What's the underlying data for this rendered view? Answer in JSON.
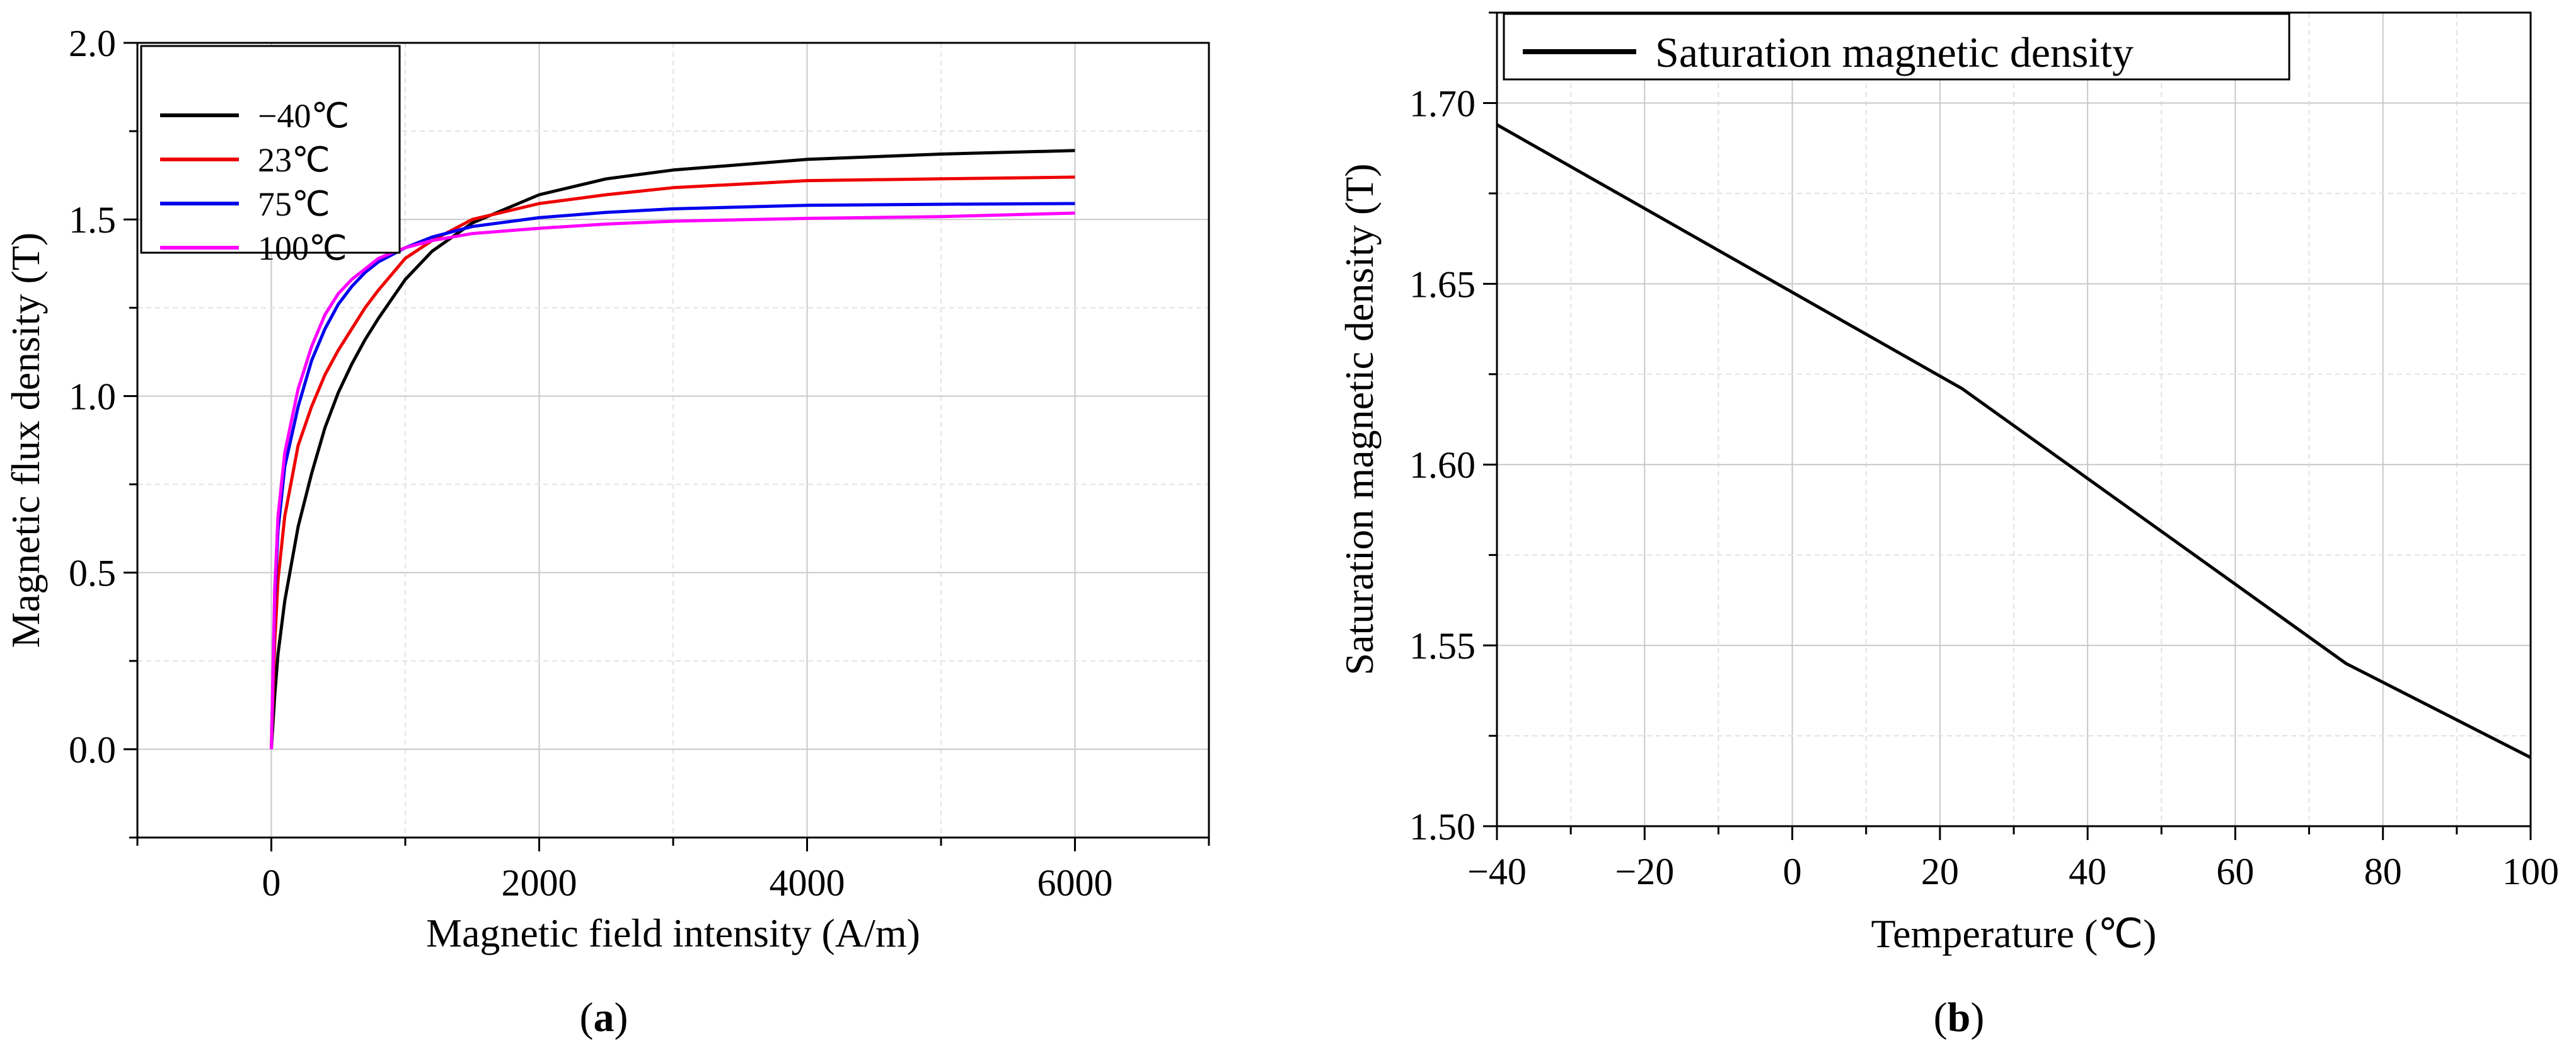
{
  "chart_data": [
    {
      "id": "a",
      "type": "line",
      "panel_label": "a",
      "xlabel": "Magnetic field intensity (A/m)",
      "ylabel": "Magnetic flux density (T)",
      "xlim": [
        -1000,
        7000
      ],
      "ylim": [
        -0.25,
        2.0
      ],
      "xticks": [
        0,
        2000,
        4000,
        6000
      ],
      "yticks": [
        0.0,
        0.5,
        1.0,
        1.5,
        2.0
      ],
      "ytick_labels": [
        "0.0",
        "0.5",
        "1.0",
        "1.5",
        "2.0"
      ],
      "grid": true,
      "legend_position": "top-left",
      "series": [
        {
          "name": "−40℃",
          "color": "#000000",
          "x": [
            0,
            25,
            50,
            100,
            200,
            300,
            400,
            500,
            600,
            700,
            800,
            1000,
            1200,
            1500,
            2000,
            2500,
            3000,
            4000,
            5000,
            6000
          ],
          "y": [
            0.0,
            0.15,
            0.27,
            0.42,
            0.63,
            0.78,
            0.91,
            1.01,
            1.09,
            1.16,
            1.22,
            1.33,
            1.41,
            1.49,
            1.57,
            1.615,
            1.64,
            1.67,
            1.685,
            1.695
          ]
        },
        {
          "name": "23℃",
          "color": "#ee0000",
          "x": [
            0,
            25,
            50,
            100,
            200,
            300,
            400,
            500,
            600,
            700,
            800,
            1000,
            1200,
            1500,
            2000,
            2500,
            3000,
            4000,
            5000,
            6000
          ],
          "y": [
            0.0,
            0.3,
            0.48,
            0.66,
            0.86,
            0.97,
            1.06,
            1.13,
            1.19,
            1.25,
            1.3,
            1.39,
            1.44,
            1.5,
            1.545,
            1.57,
            1.59,
            1.61,
            1.615,
            1.62
          ]
        },
        {
          "name": "75℃",
          "color": "#0000ee",
          "x": [
            0,
            25,
            50,
            100,
            200,
            300,
            400,
            500,
            600,
            700,
            800,
            1000,
            1200,
            1500,
            2000,
            2500,
            3000,
            4000,
            5000,
            6000
          ],
          "y": [
            0.0,
            0.42,
            0.62,
            0.8,
            0.97,
            1.1,
            1.19,
            1.26,
            1.31,
            1.35,
            1.38,
            1.42,
            1.45,
            1.48,
            1.505,
            1.52,
            1.53,
            1.54,
            1.543,
            1.545
          ]
        },
        {
          "name": "100℃",
          "color": "#ff00ff",
          "x": [
            0,
            25,
            50,
            100,
            200,
            300,
            400,
            500,
            600,
            700,
            800,
            1000,
            1200,
            1500,
            2000,
            2500,
            3000,
            4000,
            5000,
            6000
          ],
          "y": [
            0.0,
            0.45,
            0.66,
            0.84,
            1.02,
            1.14,
            1.23,
            1.29,
            1.33,
            1.36,
            1.39,
            1.42,
            1.44,
            1.46,
            1.475,
            1.487,
            1.495,
            1.503,
            1.508,
            1.518
          ]
        }
      ]
    },
    {
      "id": "b",
      "type": "line",
      "panel_label": "b",
      "xlabel": "Temperature (℃)",
      "ylabel": "Saturation magnetic density (T)",
      "xlim": [
        -40,
        100
      ],
      "ylim": [
        1.5,
        1.725
      ],
      "xticks": [
        -40,
        -20,
        0,
        20,
        40,
        60,
        80,
        100
      ],
      "xtick_labels": [
        "−40",
        "−20",
        "0",
        "20",
        "40",
        "60",
        "80",
        "100"
      ],
      "yticks": [
        1.5,
        1.55,
        1.6,
        1.65,
        1.7
      ],
      "ytick_labels": [
        "1.50",
        "1.55",
        "1.60",
        "1.65",
        "1.70"
      ],
      "grid": true,
      "legend_position": "top-left",
      "series": [
        {
          "name": "Saturation magnetic density",
          "color": "#000000",
          "x": [
            -40,
            23,
            75,
            100
          ],
          "y": [
            1.694,
            1.621,
            1.545,
            1.519
          ]
        }
      ]
    }
  ]
}
